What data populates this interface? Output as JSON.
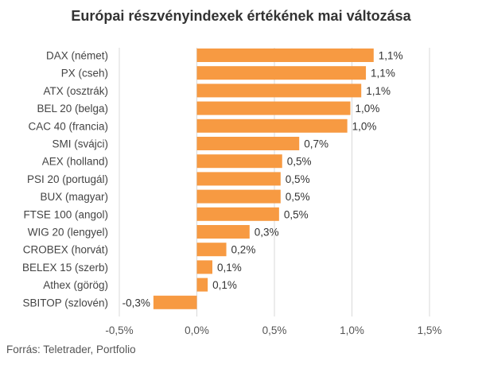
{
  "chart_data": {
    "type": "bar",
    "orientation": "horizontal",
    "title": "Európai részvényindexek értékének mai változása",
    "categories": [
      "DAX (német)",
      "PX (cseh)",
      "ATX (osztrák)",
      "BEL 20 (belga)",
      "CAC 40 (francia)",
      "SMI (svájci)",
      "AEX (holland)",
      "PSI 20 (portugál)",
      "BUX (magyar)",
      "FTSE 100 (angol)",
      "WIG 20 (lengyel)",
      "CROBEX (horvát)",
      "BELEX 15 (szerb)",
      "Athex (görög)",
      "SBITOP (szlovén)"
    ],
    "values": [
      1.14,
      1.09,
      1.06,
      0.99,
      0.97,
      0.66,
      0.55,
      0.54,
      0.54,
      0.53,
      0.34,
      0.19,
      0.1,
      0.07,
      -0.28
    ],
    "value_labels": [
      "1,1%",
      "1,1%",
      "1,1%",
      "1,0%",
      "1,0%",
      "0,7%",
      "0,5%",
      "0,5%",
      "0,5%",
      "0,5%",
      "0,3%",
      "0,2%",
      "0,1%",
      "0,1%",
      "-0,3%"
    ],
    "xlim": [
      -0.5,
      1.5
    ],
    "xticks": [
      -0.5,
      0.0,
      0.5,
      1.0,
      1.5
    ],
    "xtick_labels": [
      "-0,5%",
      "0,0%",
      "0,5%",
      "1,0%",
      "1,5%"
    ],
    "grid": true,
    "bar_color": "#f79a42",
    "grid_color": "#d9d9d9",
    "source": "Forrás: Teletrader, Portfolio"
  }
}
